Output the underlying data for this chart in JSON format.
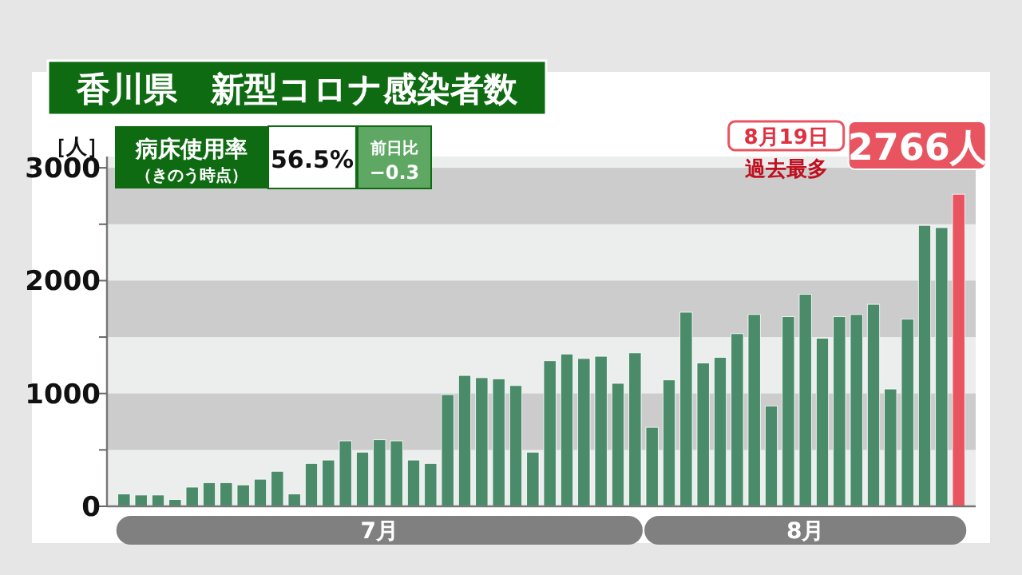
{
  "chart_data": {
    "type": "bar",
    "title": "香川県　新型コロナ感染者数",
    "ylabel": "［人］",
    "x": [
      "--07-01",
      "--07-02",
      "--07-03",
      "--07-04",
      "--07-05",
      "--07-06",
      "--07-07",
      "--07-08",
      "--07-09",
      "--07-10",
      "--07-11",
      "--07-12",
      "--07-13",
      "--07-14",
      "--07-15",
      "--07-16",
      "--07-17",
      "--07-18",
      "--07-19",
      "--07-20",
      "--07-21",
      "--07-22",
      "--07-23",
      "--07-24",
      "--07-25",
      "--07-26",
      "--07-27",
      "--07-28",
      "--07-29",
      "--07-30",
      "--07-31",
      "--08-01",
      "--08-02",
      "--08-03",
      "--08-04",
      "--08-05",
      "--08-06",
      "--08-07",
      "--08-08",
      "--08-09",
      "--08-10",
      "--08-11",
      "--08-12",
      "--08-13",
      "--08-14",
      "--08-15",
      "--08-16",
      "--08-17",
      "--08-18",
      "--08-19"
    ],
    "values": [
      110,
      100,
      100,
      60,
      170,
      210,
      210,
      190,
      240,
      310,
      110,
      380,
      410,
      580,
      480,
      590,
      580,
      410,
      380,
      990,
      1160,
      1140,
      1130,
      1070,
      480,
      1290,
      1350,
      1310,
      1330,
      1090,
      1360,
      700,
      1120,
      1720,
      1270,
      1320,
      1530,
      1700,
      890,
      1680,
      1880,
      1490,
      1680,
      1700,
      1790,
      1040,
      1660,
      2490,
      2470,
      2766
    ],
    "colors": [
      "#4a8c6a",
      "#4a8c6a",
      "#4a8c6a",
      "#4a8c6a",
      "#4a8c6a",
      "#4a8c6a",
      "#4a8c6a",
      "#4a8c6a",
      "#4a8c6a",
      "#4a8c6a",
      "#4a8c6a",
      "#4a8c6a",
      "#4a8c6a",
      "#4a8c6a",
      "#4a8c6a",
      "#4a8c6a",
      "#4a8c6a",
      "#4a8c6a",
      "#4a8c6a",
      "#4a8c6a",
      "#4a8c6a",
      "#4a8c6a",
      "#4a8c6a",
      "#4a8c6a",
      "#4a8c6a",
      "#4a8c6a",
      "#4a8c6a",
      "#4a8c6a",
      "#4a8c6a",
      "#4a8c6a",
      "#4a8c6a",
      "#4a8c6a",
      "#4a8c6a",
      "#4a8c6a",
      "#4a8c6a",
      "#4a8c6a",
      "#4a8c6a",
      "#4a8c6a",
      "#4a8c6a",
      "#4a8c6a",
      "#4a8c6a",
      "#4a8c6a",
      "#4a8c6a",
      "#4a8c6a",
      "#4a8c6a",
      "#4a8c6a",
      "#4a8c6a",
      "#4a8c6a",
      "#4a8c6a",
      "#e85560"
    ],
    "xlim": [
      "--06-30",
      "--08-20"
    ],
    "xticks": [
      {
        "value": "--07-16",
        "label": "7月"
      },
      {
        "value": "--08-10",
        "label": "8月"
      }
    ],
    "ylim": [
      0,
      3100
    ],
    "yticks": [
      0,
      {
        "value": 500,
        "label": null
      },
      1000,
      {
        "value": 1500,
        "label": null
      },
      2000,
      {
        "value": 2500,
        "label": null
      },
      3000
    ],
    "bands": [
      {
        "axis": "y",
        "from": 500,
        "to": 1000,
        "color": "#cccccc"
      },
      {
        "axis": "y",
        "from": 1500,
        "to": 2000,
        "color": "#cccccc"
      },
      {
        "axis": "y",
        "from": 2500,
        "to": 3000,
        "color": "#cccccc"
      }
    ],
    "annotations": [
      "病床使用率",
      "（きのう時点）",
      "56.5%",
      "前日比",
      "−0.3",
      "8月19日",
      "過去最多",
      "2766人"
    ]
  }
}
